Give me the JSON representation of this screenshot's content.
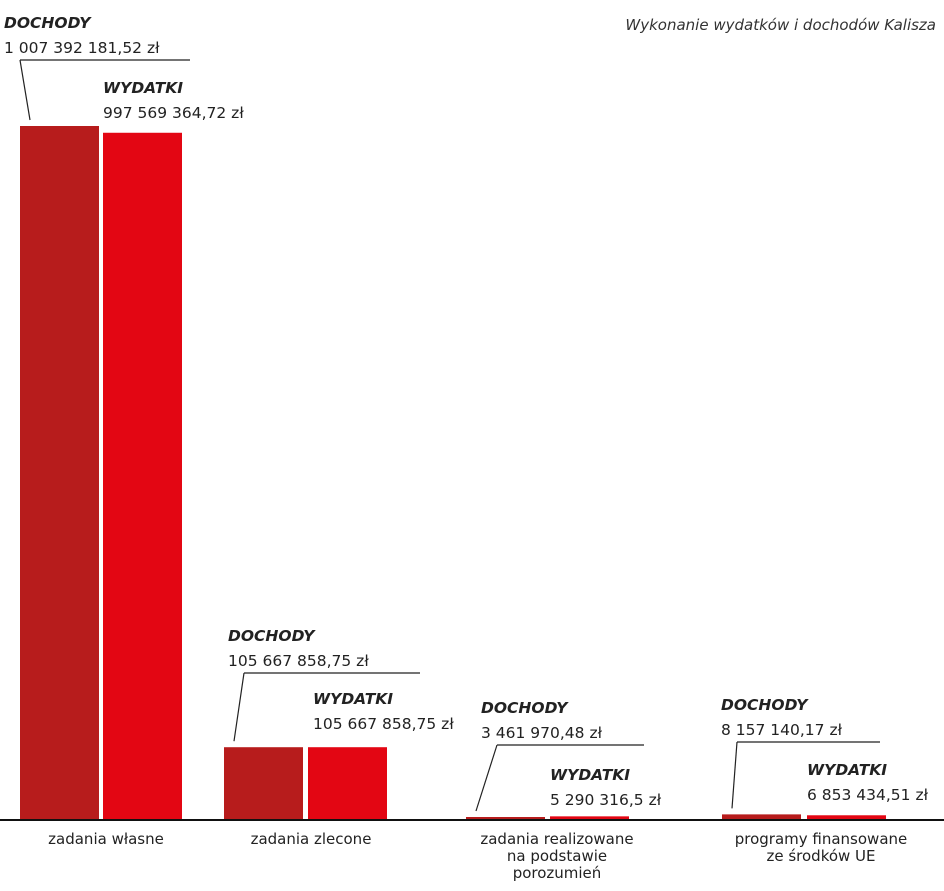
{
  "chart_data": {
    "type": "bar",
    "title": "Wykonanie wydatków i dochodów Kalisza",
    "categories": [
      [
        "zadania własne"
      ],
      [
        "zadania zlecone"
      ],
      [
        "zadania realizowane",
        "na podstawie",
        "porozumień"
      ],
      [
        "programy finansowane",
        "ze środków UE"
      ]
    ],
    "series": [
      {
        "name": "DOCHODY",
        "color": "#b71c1c",
        "values": [
          1007392181.52,
          105667858.75,
          3461970.48,
          8157140.17
        ],
        "labels": [
          "1 007 392 181,52 zł",
          "105 667 858,75 zł",
          "3 461 970,48 zł",
          "8 157 140,17 zł"
        ]
      },
      {
        "name": "WYDATKI",
        "color": "#e30613",
        "values": [
          997569364.72,
          105667858.75,
          5290316.5,
          6853434.51
        ],
        "labels": [
          "997 569 364,72 zł",
          "105 667 858,75 zł",
          "5 290 316,5 zł",
          "6 853 434,51 zł"
        ]
      }
    ],
    "ylim": [
      0,
      1007392181.52
    ],
    "grid": false,
    "legend": "none"
  }
}
